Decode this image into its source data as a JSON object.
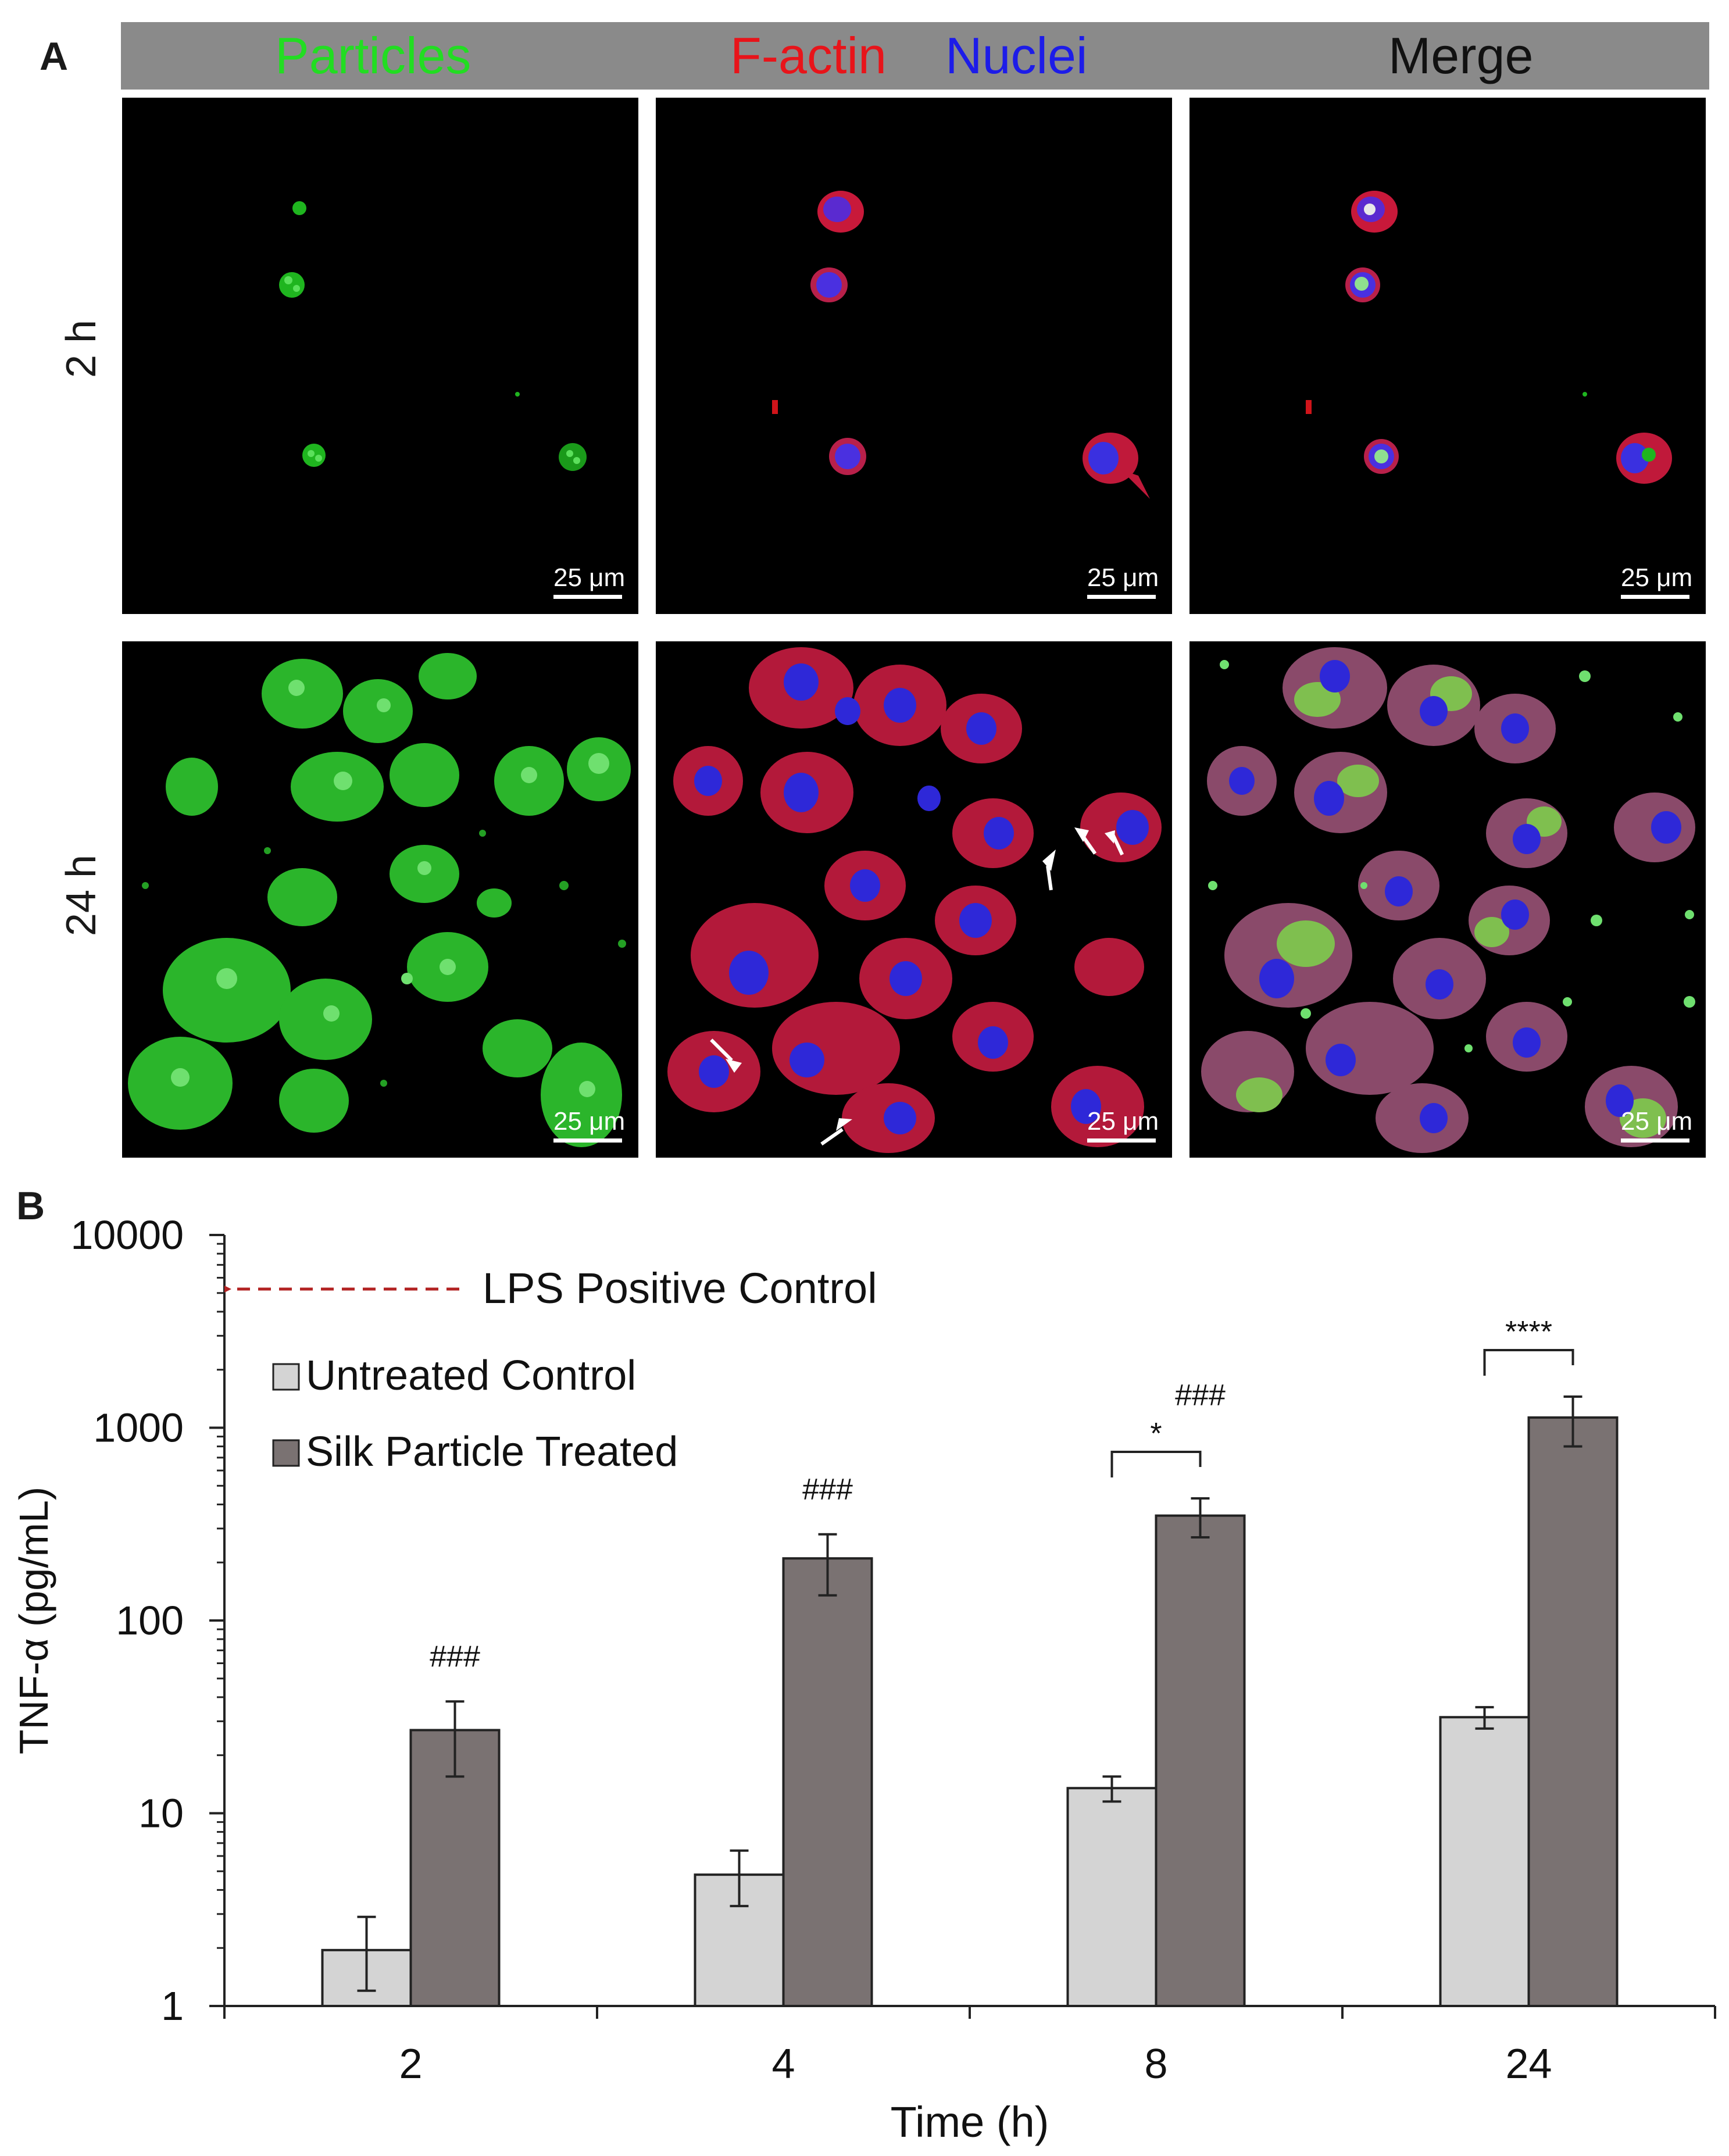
{
  "panel_a": {
    "letter": "A",
    "headers": {
      "particles": "Particles",
      "factin": "F-actin",
      "nuclei": "Nuclei",
      "merge": "Merge"
    },
    "header_colors": {
      "particles": "#22dd22",
      "factin": "#e8141a",
      "nuclei": "#1d1ce8",
      "merge": "#111111"
    },
    "rows": [
      "2 h",
      "24 h"
    ],
    "scale_bar": "25 μm"
  },
  "chart_data": {
    "panel_letter": "B",
    "type": "bar",
    "categories": [
      "2",
      "4",
      "8",
      "24"
    ],
    "series": [
      {
        "name": "Untreated Control",
        "color": "#d4d4d4",
        "values": [
          1.95,
          4.8,
          13.5,
          31.5
        ],
        "err_low": [
          1.2,
          3.3,
          11.5,
          27.5
        ],
        "err_high": [
          2.9,
          6.4,
          15.5,
          35.5
        ]
      },
      {
        "name": "Silk Particle Treated",
        "color": "#7a7272",
        "values": [
          27,
          210,
          350,
          1130
        ],
        "err_low": [
          15.5,
          135,
          270,
          800
        ],
        "err_high": [
          38,
          280,
          430,
          1450
        ]
      }
    ],
    "xlabel": "Time (h)",
    "ylabel": "TNF-α (pg/mL)",
    "yscale": "log",
    "ylim": [
      1,
      10000
    ],
    "yticks": [
      "1",
      "10",
      "100",
      "1000",
      "10000"
    ],
    "legend_position": "upper-left",
    "reference": {
      "label": "LPS Positive Control",
      "value": 5300,
      "color": "#b22222"
    },
    "annotations": [
      {
        "text": "###",
        "category": "2"
      },
      {
        "text": "###",
        "category": "4"
      },
      {
        "text": "###",
        "category": "8"
      },
      {
        "text": "*",
        "category": "8",
        "type": "bracket"
      },
      {
        "text": "****",
        "category": "24",
        "type": "bracket"
      }
    ]
  }
}
